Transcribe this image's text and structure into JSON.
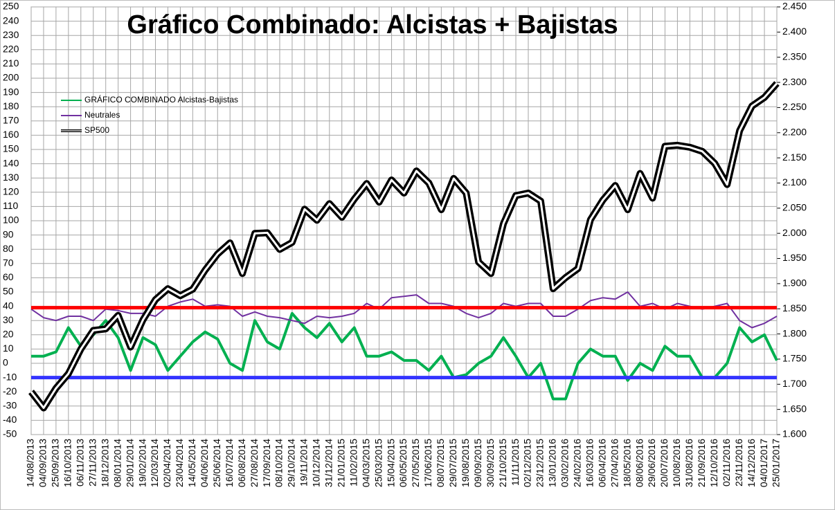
{
  "chart_data": {
    "type": "line",
    "title": "Gráfico Combinado: Alcistas + Bajistas",
    "categories": [
      "14/08/2013",
      "04/09/2013",
      "25/09/2013",
      "16/10/2013",
      "06/11/2013",
      "27/11/2013",
      "18/12/2013",
      "08/01/2014",
      "29/01/2014",
      "19/02/2014",
      "12/03/2014",
      "02/04/2014",
      "23/04/2014",
      "14/05/2014",
      "04/06/2014",
      "25/06/2014",
      "16/07/2014",
      "06/08/2014",
      "27/08/2014",
      "17/09/2014",
      "08/10/2014",
      "29/10/2014",
      "19/11/2014",
      "10/12/2014",
      "31/12/2014",
      "21/01/2015",
      "11/02/2015",
      "04/03/2015",
      "25/03/2015",
      "15/04/2015",
      "06/05/2015",
      "27/05/2015",
      "17/06/2015",
      "08/07/2015",
      "29/07/2015",
      "19/08/2015",
      "09/09/2015",
      "30/09/2015",
      "21/10/2015",
      "11/11/2015",
      "02/12/2015",
      "23/12/2015",
      "13/01/2016",
      "03/02/2016",
      "24/02/2016",
      "16/03/2016",
      "06/04/2016",
      "27/04/2016",
      "18/05/2016",
      "08/06/2016",
      "29/06/2016",
      "20/07/2016",
      "10/08/2016",
      "31/08/2016",
      "21/09/2016",
      "12/10/2016",
      "02/11/2016",
      "23/11/2016",
      "14/12/2016",
      "04/01/2017",
      "25/01/2017"
    ],
    "series": [
      {
        "name": "GRÁFICO COMBINADO Alcistas-Bajistas",
        "color": "#00b050",
        "values": [
          5,
          5,
          8,
          25,
          12,
          20,
          30,
          18,
          -5,
          18,
          13,
          -5,
          5,
          15,
          22,
          17,
          0,
          -5,
          30,
          15,
          10,
          35,
          25,
          18,
          28,
          15,
          25,
          5,
          5,
          8,
          2,
          2,
          -5,
          5,
          -10,
          -8,
          0,
          5,
          18,
          5,
          -10,
          0,
          -25,
          -25,
          0,
          10,
          5,
          5,
          -12,
          0,
          -5,
          12,
          5,
          5,
          -10,
          -10,
          0,
          25,
          15,
          20,
          2
        ]
      },
      {
        "name": "Neutrales",
        "color": "#7030a0",
        "values": [
          38,
          32,
          30,
          33,
          33,
          30,
          38,
          37,
          35,
          35,
          33,
          40,
          43,
          45,
          40,
          41,
          40,
          33,
          36,
          33,
          32,
          30,
          28,
          33,
          32,
          33,
          35,
          42,
          38,
          46,
          47,
          48,
          42,
          42,
          40,
          35,
          32,
          35,
          42,
          40,
          42,
          42,
          33,
          33,
          38,
          44,
          46,
          45,
          50,
          40,
          42,
          38,
          42,
          40,
          38,
          40,
          42,
          30,
          25,
          28,
          33
        ]
      },
      {
        "name": "SP500",
        "color": "#000000",
        "axis": "y2",
        "values": [
          1685,
          1653,
          1692,
          1721,
          1770,
          1807,
          1810,
          1837,
          1774,
          1828,
          1868,
          1890,
          1876,
          1889,
          1927,
          1959,
          1981,
          1920,
          2000,
          2001,
          1968,
          1982,
          2048,
          2026,
          2059,
          2032,
          2068,
          2099,
          2062,
          2106,
          2080,
          2124,
          2100,
          2047,
          2109,
          2080,
          1943,
          1920,
          2019,
          2075,
          2080,
          2064,
          1890,
          1912,
          1930,
          2027,
          2066,
          2095,
          2047,
          2119,
          2070,
          2173,
          2175,
          2171,
          2163,
          2139,
          2097,
          2204,
          2253,
          2270,
          2298
        ]
      }
    ],
    "reference_lines": [
      {
        "value": 39,
        "color": "#ff0000"
      },
      {
        "value": -10,
        "color": "#3333ff"
      }
    ],
    "ylim": [
      -50,
      250
    ],
    "yticks": [
      -50,
      -40,
      -30,
      -20,
      -10,
      0,
      10,
      20,
      30,
      40,
      50,
      60,
      70,
      80,
      90,
      100,
      110,
      120,
      130,
      140,
      150,
      160,
      170,
      180,
      190,
      200,
      210,
      220,
      230,
      240,
      250
    ],
    "y2lim": [
      1600,
      2450
    ],
    "y2ticks": [
      {
        "value": 1600,
        "label": "1.600"
      },
      {
        "value": 1650,
        "label": "1.650"
      },
      {
        "value": 1700,
        "label": "1.700"
      },
      {
        "value": 1750,
        "label": "1.750"
      },
      {
        "value": 1800,
        "label": "1.800"
      },
      {
        "value": 1850,
        "label": "1.850"
      },
      {
        "value": 1900,
        "label": "1.900"
      },
      {
        "value": 1950,
        "label": "1.950"
      },
      {
        "value": 2000,
        "label": "2.000"
      },
      {
        "value": 2050,
        "label": "2.050"
      },
      {
        "value": 2100,
        "label": "2.100"
      },
      {
        "value": 2150,
        "label": "2.150"
      },
      {
        "value": 2200,
        "label": "2.200"
      },
      {
        "value": 2250,
        "label": "2.250"
      },
      {
        "value": 2300,
        "label": "2.300"
      },
      {
        "value": 2350,
        "label": "2.350"
      },
      {
        "value": 2400,
        "label": "2.400"
      },
      {
        "value": 2450,
        "label": "2.450"
      }
    ],
    "grid": true,
    "legend": "upper-left"
  }
}
